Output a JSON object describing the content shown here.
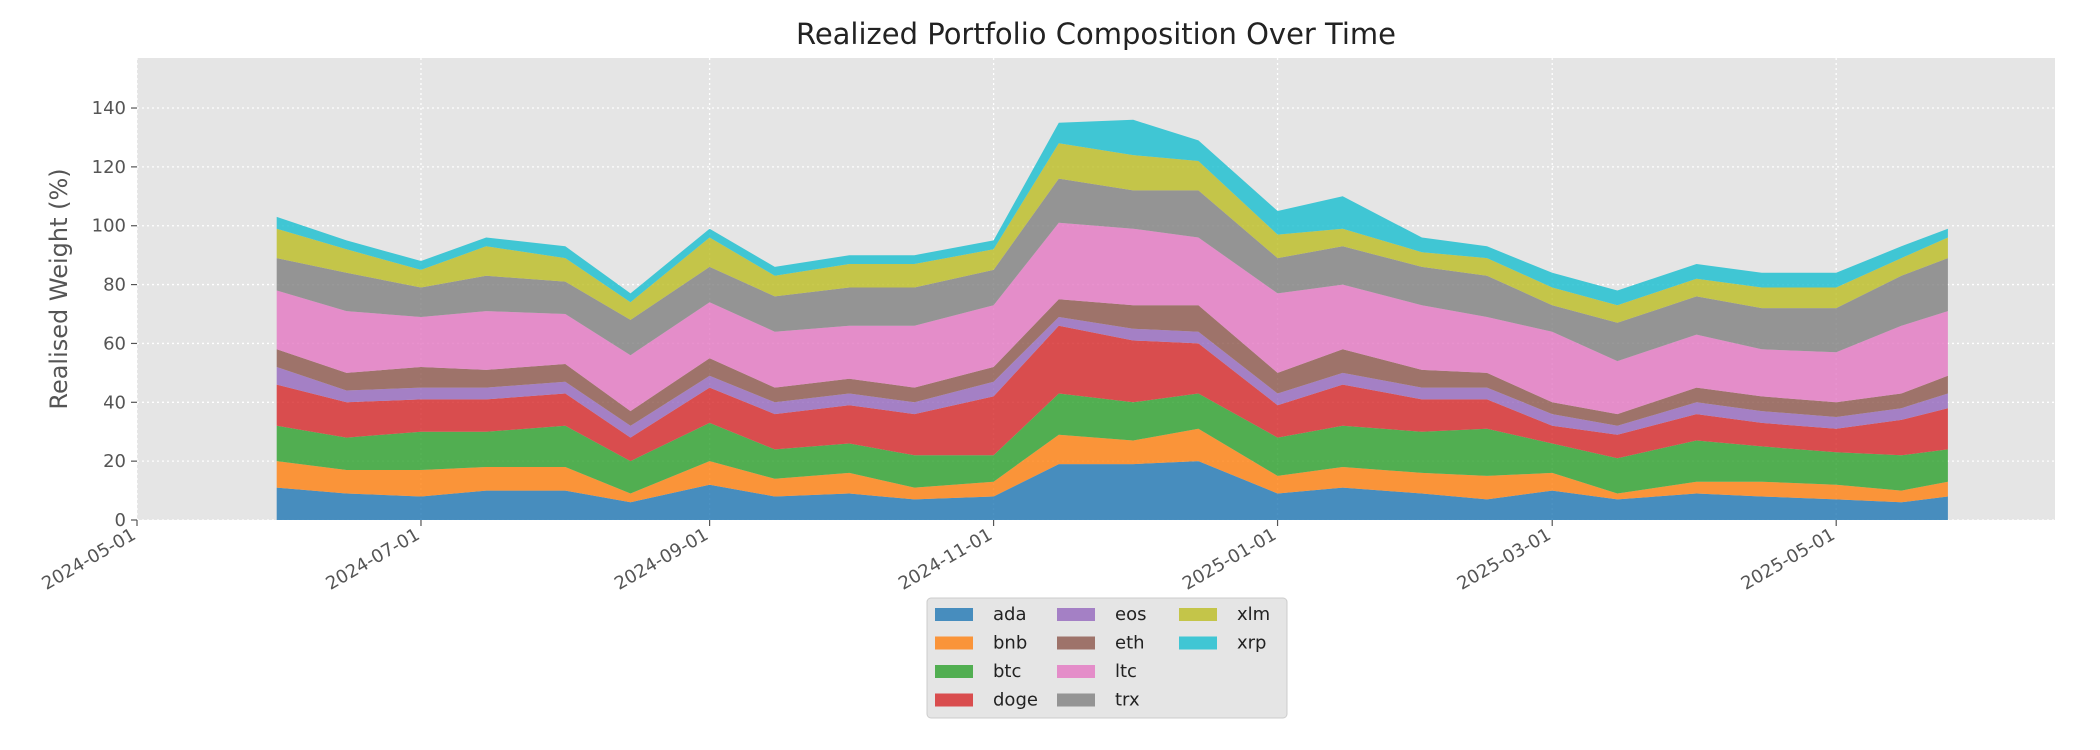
{
  "chart_data": {
    "type": "area",
    "stacked": true,
    "title": "Realized Portfolio Composition Over Time",
    "xlabel": "",
    "ylabel": "Realised Weight (%)",
    "xlim": [
      "2024-05-01",
      "2025-06-17"
    ],
    "ylim": [
      0,
      157
    ],
    "x_ticks": [
      "2024-05-01",
      "2024-07-01",
      "2024-09-01",
      "2024-11-01",
      "2025-01-01",
      "2025-03-01",
      "2025-05-01"
    ],
    "y_ticks": [
      0,
      20,
      40,
      60,
      80,
      100,
      120,
      140
    ],
    "grid": true,
    "legend_position": "bottom-center",
    "x": [
      "2024-05-31",
      "2024-06-15",
      "2024-07-01",
      "2024-07-15",
      "2024-08-01",
      "2024-08-15",
      "2024-09-01",
      "2024-09-15",
      "2024-10-01",
      "2024-10-15",
      "2024-11-01",
      "2024-11-15",
      "2024-12-01",
      "2024-12-15",
      "2025-01-01",
      "2025-01-15",
      "2025-02-01",
      "2025-02-15",
      "2025-03-01",
      "2025-03-15",
      "2025-04-01",
      "2025-04-15",
      "2025-05-01",
      "2025-05-15",
      "2025-05-25"
    ],
    "series": [
      {
        "name": "ada",
        "color": "#1f77b4",
        "values": [
          11,
          9,
          8,
          10,
          10,
          6,
          12,
          8,
          9,
          7,
          8,
          19,
          19,
          20,
          9,
          11,
          9,
          7,
          10,
          7,
          9,
          8,
          7,
          6,
          8
        ]
      },
      {
        "name": "bnb",
        "color": "#ff7f0e",
        "values": [
          9,
          8,
          9,
          8,
          8,
          3,
          8,
          6,
          7,
          4,
          5,
          10,
          8,
          11,
          6,
          7,
          7,
          8,
          6,
          2,
          4,
          5,
          5,
          4,
          5
        ]
      },
      {
        "name": "btc",
        "color": "#2ca02c",
        "values": [
          12,
          11,
          13,
          12,
          14,
          11,
          13,
          10,
          10,
          11,
          9,
          14,
          13,
          12,
          13,
          14,
          14,
          16,
          10,
          12,
          14,
          12,
          11,
          12,
          11
        ]
      },
      {
        "name": "doge",
        "color": "#d62728",
        "values": [
          14,
          12,
          11,
          11,
          11,
          8,
          12,
          12,
          13,
          14,
          20,
          23,
          21,
          17,
          11,
          14,
          11,
          10,
          6,
          8,
          9,
          8,
          8,
          12,
          14
        ]
      },
      {
        "name": "eos",
        "color": "#9467bd",
        "values": [
          6,
          4,
          4,
          4,
          4,
          4,
          4,
          4,
          4,
          4,
          5,
          3,
          4,
          4,
          4,
          4,
          4,
          4,
          4,
          3,
          4,
          4,
          4,
          4,
          5
        ]
      },
      {
        "name": "eth",
        "color": "#8c564b",
        "values": [
          6,
          6,
          7,
          6,
          6,
          5,
          6,
          5,
          5,
          5,
          5,
          6,
          8,
          9,
          7,
          8,
          6,
          5,
          4,
          4,
          5,
          5,
          5,
          5,
          6
        ]
      },
      {
        "name": "ltc",
        "color": "#e377c2",
        "values": [
          20,
          21,
          17,
          20,
          17,
          19,
          19,
          19,
          18,
          21,
          21,
          26,
          26,
          23,
          27,
          22,
          22,
          19,
          24,
          18,
          18,
          16,
          17,
          23,
          22
        ]
      },
      {
        "name": "trx",
        "color": "#7f7f7f",
        "values": [
          11,
          13,
          10,
          12,
          11,
          12,
          12,
          12,
          13,
          13,
          12,
          15,
          13,
          16,
          12,
          13,
          13,
          14,
          9,
          13,
          13,
          14,
          15,
          17,
          18
        ]
      },
      {
        "name": "xlm",
        "color": "#bcbd22",
        "values": [
          10,
          8,
          6,
          10,
          8,
          6,
          10,
          7,
          8,
          8,
          7,
          12,
          12,
          10,
          8,
          6,
          5,
          6,
          6,
          6,
          6,
          7,
          7,
          6,
          7
        ]
      },
      {
        "name": "xrp",
        "color": "#17becf",
        "values": [
          4,
          3,
          3,
          3,
          4,
          3,
          3,
          3,
          3,
          3,
          3,
          7,
          12,
          7,
          8,
          11,
          5,
          4,
          5,
          5,
          5,
          5,
          5,
          4,
          3
        ]
      }
    ]
  }
}
